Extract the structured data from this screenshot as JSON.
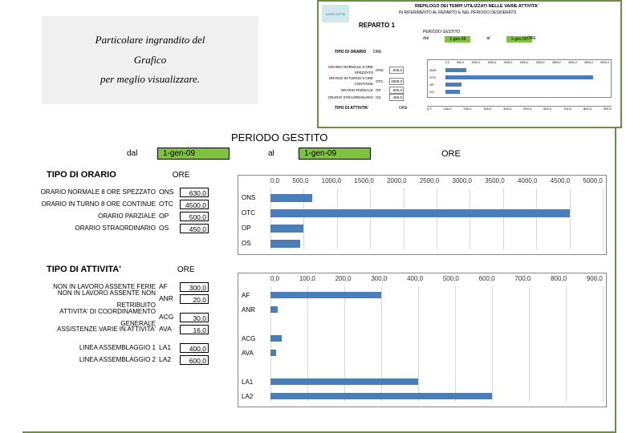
{
  "note": {
    "line1": "Particolare ingrandito del",
    "line2": "Grafico",
    "line3": "per meglio visualizzare."
  },
  "thumb": {
    "logo": "LOGO DITTA",
    "title": "RIEPILOGO DEI TEMPI UTILIZZATI NELLE VARIE ATTIVITA'",
    "subtitle": "IN RIFERIMENTO AL REPARTO E NEL PERIODO DESIDERATO",
    "reparto": "REPARTO 1",
    "period_label": "PERIODO GESTITO",
    "dal": "dal",
    "al": "al",
    "date_from": "1-gen-09",
    "date_to": "1-gen-09",
    "ore": "ORE",
    "tipo_orario": "TIPO DI ORARIO",
    "tipo_attivita": "TIPO DI ATTIVITA'"
  },
  "colors": {
    "accent_green": "#7fc241",
    "border_green": "#6b8e47",
    "bar_blue": "#4a7ebb",
    "grid": "#d8d8d8",
    "logo_bg": "#cfe9ef"
  },
  "main": {
    "title": "PERIODO GESTITO",
    "dal": "dal",
    "al": "al",
    "date_from": "1-gen-09",
    "date_to": "1-gen-09",
    "ore_label": "ORE"
  },
  "section_orario": {
    "header": "TIPO DI ORARIO",
    "ore": "ORE",
    "rows": [
      {
        "desc": "ORARIO NORMALE 8 ORE SPEZZATO",
        "code": "ONS",
        "value": "630,0"
      },
      {
        "desc": "ORARIO IN TURNO 8 ORE CONTINUE",
        "code": "OTC",
        "value": "4500,0"
      },
      {
        "desc": "ORARIO PARZIALE",
        "code": "OP",
        "value": "500,0"
      },
      {
        "desc": "ORARIO STRAORDINARIO",
        "code": "OS",
        "value": "450,0"
      }
    ]
  },
  "section_attivita": {
    "header": "TIPO DI ATTIVITA'",
    "ore": "ORE",
    "rows": [
      {
        "desc": "NON IN LAVORO ASSENTE FERIE",
        "code": "AF",
        "value": "300,0"
      },
      {
        "desc": "NON IN LAVORO ASSENTE NON RETRIBUITO",
        "code": "ANR",
        "value": "20,0"
      },
      {
        "desc": "",
        "code": "",
        "value": ""
      },
      {
        "desc": "ATTIVITA' DI COORDINAMENTO GENERALE",
        "code": "ACG",
        "value": "30,0"
      },
      {
        "desc": "ASSISTENZE VARIE IN ATTIVITA'",
        "code": "AVA",
        "value": "16,0"
      },
      {
        "desc": "",
        "code": "",
        "value": ""
      },
      {
        "desc": "LINEA ASSEMBLAGGIO 1",
        "code": "LA1",
        "value": "400,0"
      },
      {
        "desc": "LINEA ASSEMBLAGGIO 2",
        "code": "LA2",
        "value": "600,0"
      }
    ]
  },
  "chart_orario": {
    "type": "bar-horizontal",
    "xlim": [
      0,
      5000
    ],
    "xtick_step": 500,
    "xticks": [
      "0,0",
      "500,0",
      "1000,0",
      "1500,0",
      "2000,0",
      "2500,0",
      "3000,0",
      "3500,0",
      "4000,0",
      "4500,0",
      "5000,0"
    ],
    "bar_color": "#4a7ebb",
    "bars": [
      {
        "label": "ONS",
        "value": 630
      },
      {
        "label": "OTC",
        "value": 4500
      },
      {
        "label": "OP",
        "value": 500
      },
      {
        "label": "OS",
        "value": 450
      }
    ]
  },
  "chart_attivita": {
    "type": "bar-horizontal",
    "xlim": [
      0,
      900
    ],
    "xtick_step": 100,
    "xticks": [
      "0,0",
      "100,0",
      "200,0",
      "300,0",
      "400,0",
      "500,0",
      "600,0",
      "700,0",
      "800,0",
      "900,0"
    ],
    "bar_color": "#4a7ebb",
    "bars": [
      {
        "label": "AF",
        "value": 300
      },
      {
        "label": "ANR",
        "value": 20
      },
      {
        "label": "",
        "value": null
      },
      {
        "label": "ACG",
        "value": 30
      },
      {
        "label": "AVA",
        "value": 16
      },
      {
        "label": "",
        "value": null
      },
      {
        "label": "LA1",
        "value": 400
      },
      {
        "label": "LA2",
        "value": 600
      }
    ]
  }
}
